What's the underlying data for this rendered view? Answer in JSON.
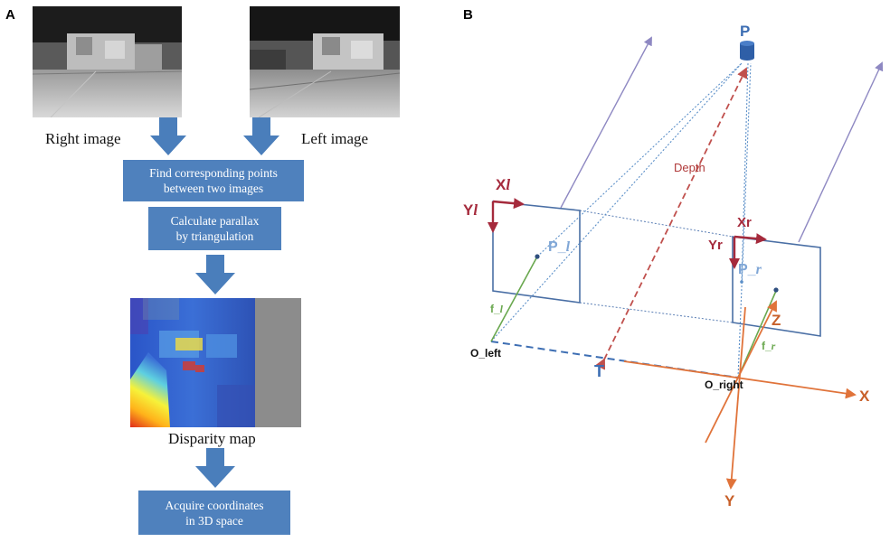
{
  "panel_a": {
    "letter": "A",
    "right_image_label": "Right image",
    "left_image_label": "Left image",
    "step1": [
      "Find corresponding points",
      "between two images"
    ],
    "step2": [
      "Calculate parallax",
      "by triangulation"
    ],
    "disparity_label": "Disparity map",
    "step3": [
      "Acquire coordinates",
      "in 3D space"
    ]
  },
  "panel_b": {
    "letter": "B",
    "point_P": "P",
    "depth": "Depth",
    "xl": "X",
    "xl_sub": "l",
    "yl": "Y",
    "yl_sub": "l",
    "xr": "Xr",
    "yr": "Yr",
    "p_l": "P_",
    "p_l_sub": "l",
    "p_r": "P_",
    "p_r_sub": "r",
    "f_l": "f_",
    "f_l_sub": "l",
    "f_r": "f_",
    "f_r_sub": "r",
    "o_left": "O_left",
    "o_right": "O_right",
    "T": "T",
    "Z": "Z",
    "X": "X",
    "Y": "Y"
  },
  "colors": {
    "box_blue": "#4f81bd",
    "arrow_blue": "#4a7ebb",
    "frame_red": "#a52a3c",
    "axis_orange": "#e0733a",
    "focal_green": "#6aa84f",
    "ray_purple": "#8e88c2",
    "label_blue": "#3d6eb3"
  }
}
